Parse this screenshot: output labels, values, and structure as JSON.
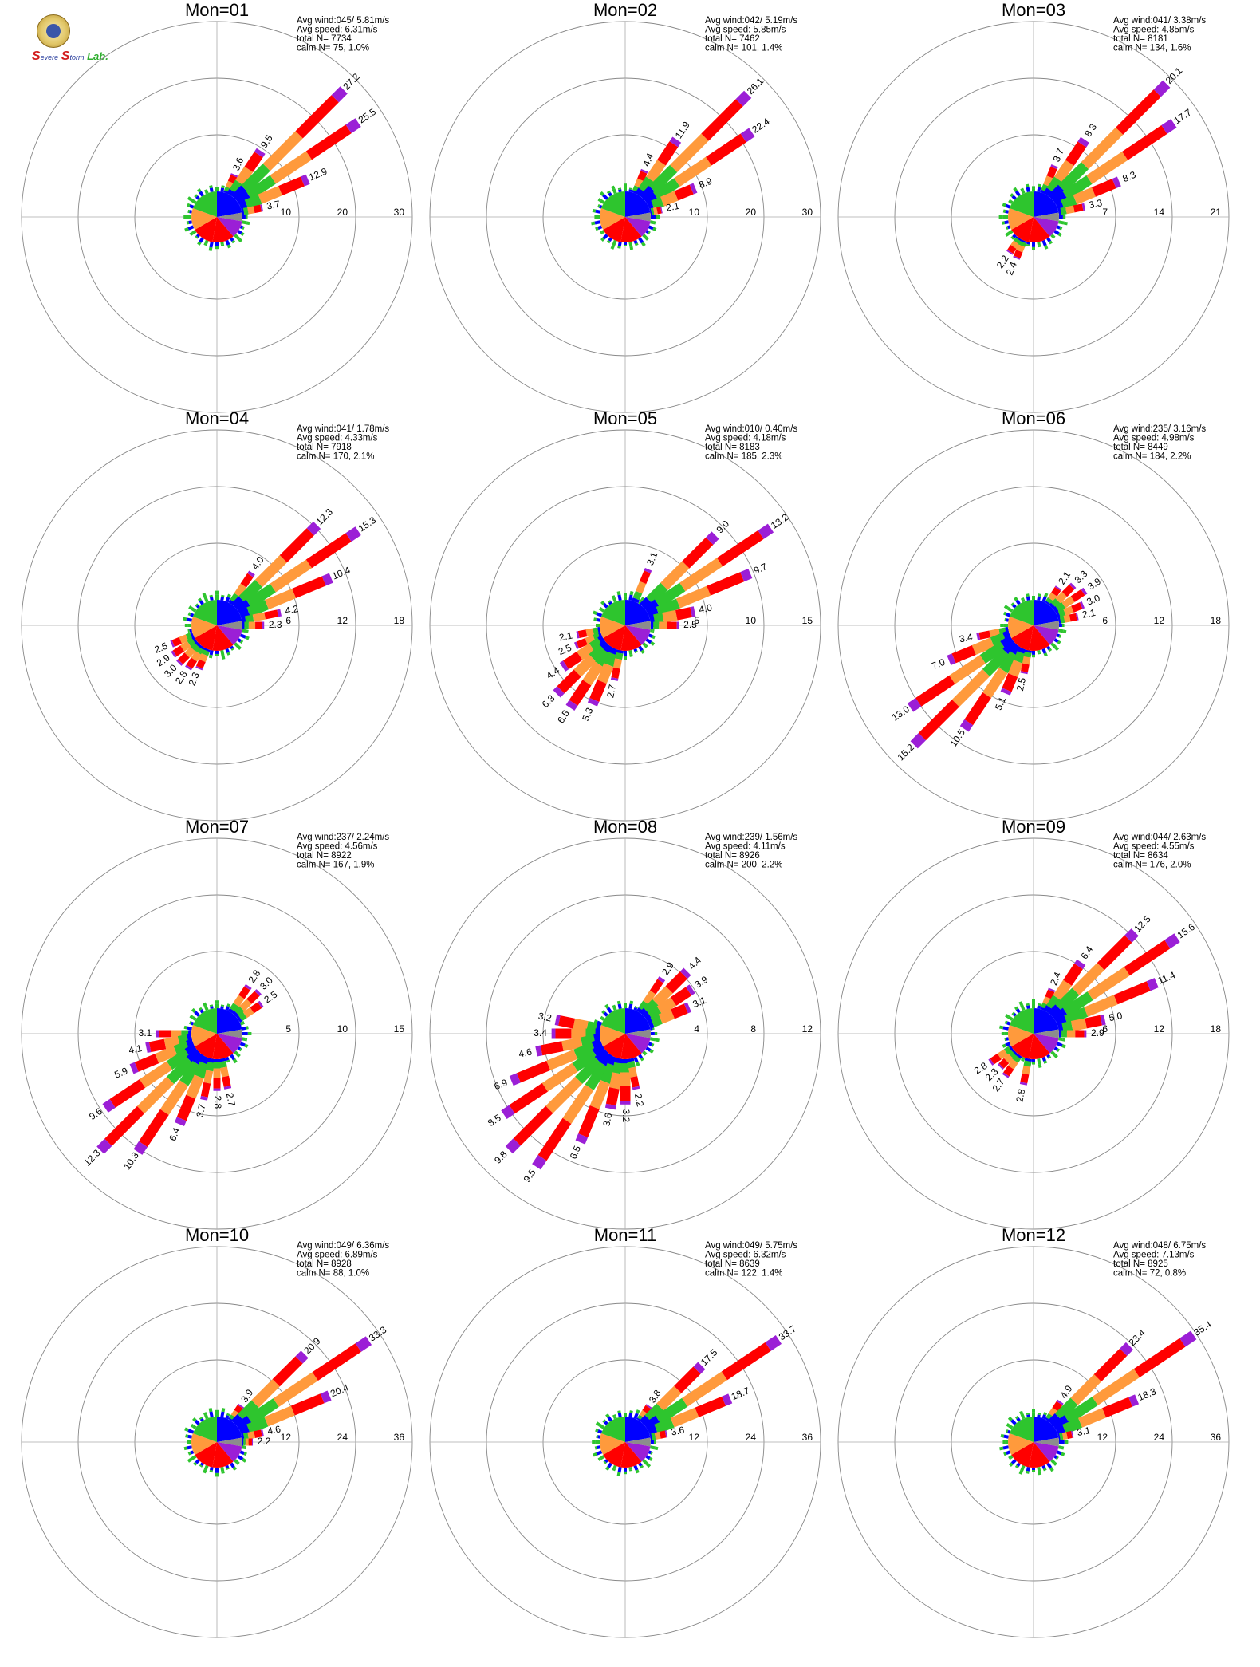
{
  "logo": {
    "icon": "seal-icon",
    "letter": "S",
    "word1": "evere",
    "word2": "torm",
    "lab": "Lab."
  },
  "palette": {
    "blue": "#0000ff",
    "green": "#2ec52e",
    "orange": "#ff9a3c",
    "red": "#ff0000",
    "purple": "#9b1fd6",
    "grey": "#8c8c8c",
    "ring": "#888888",
    "axis": "#aaaaaa"
  },
  "chart_data": [
    {
      "type": "wind-rose",
      "title": "Mon=01",
      "avg_wind": "045/ 5.81m/s",
      "avg_speed": "6.31m/s",
      "total_n": "7734",
      "calm_n": "75,",
      "calm_pct": "1.0%",
      "rmax": 30,
      "rings": [
        10,
        20,
        30
      ],
      "petals": [
        {
          "dir": 22.5,
          "label": "3.6"
        },
        {
          "dir": 33.75,
          "label": "9.5"
        },
        {
          "dir": 45,
          "label": "27.2"
        },
        {
          "dir": 56.25,
          "label": "25.5"
        },
        {
          "dir": 67.5,
          "label": "12.9"
        },
        {
          "dir": 78.75,
          "label": "3.7"
        }
      ]
    },
    {
      "type": "wind-rose",
      "title": "Mon=02",
      "avg_wind": "042/ 5.19m/s",
      "avg_speed": "5.85m/s",
      "total_n": "7462",
      "calm_n": "101,",
      "calm_pct": "1.4%",
      "rmax": 30,
      "rings": [
        10,
        20,
        30
      ],
      "petals": [
        {
          "dir": 22.5,
          "label": "4.4"
        },
        {
          "dir": 33.75,
          "label": "11.9"
        },
        {
          "dir": 45,
          "label": "26.1"
        },
        {
          "dir": 56.25,
          "label": "22.4"
        },
        {
          "dir": 67.5,
          "label": "8.9"
        },
        {
          "dir": 78.75,
          "label": "2.1"
        }
      ]
    },
    {
      "type": "wind-rose",
      "title": "Mon=03",
      "avg_wind": "041/ 3.38m/s",
      "avg_speed": "4.85m/s",
      "total_n": "8181",
      "calm_n": "134,",
      "calm_pct": "1.6%",
      "rmax": 21,
      "rings": [
        7,
        14,
        21
      ],
      "petals": [
        {
          "dir": 22.5,
          "label": "3.7"
        },
        {
          "dir": 33.75,
          "label": "8.3"
        },
        {
          "dir": 45,
          "label": "20.1"
        },
        {
          "dir": 56.25,
          "label": "17.7"
        },
        {
          "dir": 67.5,
          "label": "8.3"
        },
        {
          "dir": 78.75,
          "label": "3.3"
        },
        {
          "dir": 213.75,
          "label": "2.2"
        },
        {
          "dir": 202.5,
          "label": "2.4"
        }
      ]
    },
    {
      "type": "wind-rose",
      "title": "Mon=04",
      "avg_wind": "041/ 1.78m/s",
      "avg_speed": "4.33m/s",
      "total_n": "7918",
      "calm_n": "170,",
      "calm_pct": "2.1%",
      "rmax": 18,
      "rings": [
        6,
        12,
        18
      ],
      "petals": [
        {
          "dir": 33.75,
          "label": "4.0"
        },
        {
          "dir": 45,
          "label": "12.3"
        },
        {
          "dir": 56.25,
          "label": "15.3"
        },
        {
          "dir": 67.5,
          "label": "10.4"
        },
        {
          "dir": 78.75,
          "label": "4.2"
        },
        {
          "dir": 90,
          "label": "2.3"
        },
        {
          "dir": 247.5,
          "label": "2.5"
        },
        {
          "dir": 236.25,
          "label": "2.9"
        },
        {
          "dir": 225,
          "label": "3.0"
        },
        {
          "dir": 213.75,
          "label": "2.8"
        },
        {
          "dir": 202.5,
          "label": "2.3"
        }
      ]
    },
    {
      "type": "wind-rose",
      "title": "Mon=05",
      "avg_wind": "010/ 0.40m/s",
      "avg_speed": "4.18m/s",
      "total_n": "8183",
      "calm_n": "185,",
      "calm_pct": "2.3%",
      "rmax": 15,
      "rings": [
        5,
        10,
        15
      ],
      "petals": [
        {
          "dir": 22.5,
          "label": "3.1"
        },
        {
          "dir": 45,
          "label": "9.0"
        },
        {
          "dir": 56.25,
          "label": "13.2"
        },
        {
          "dir": 67.5,
          "label": "9.7"
        },
        {
          "dir": 78.75,
          "label": "4.0"
        },
        {
          "dir": 90,
          "label": "2.5"
        },
        {
          "dir": 258.75,
          "label": "2.1"
        },
        {
          "dir": 247.5,
          "label": "2.5"
        },
        {
          "dir": 236.25,
          "label": "4.4"
        },
        {
          "dir": 225,
          "label": "6.3"
        },
        {
          "dir": 213.75,
          "label": "6.5"
        },
        {
          "dir": 202.5,
          "label": "5.3"
        },
        {
          "dir": 191.25,
          "label": "2.7"
        }
      ]
    },
    {
      "type": "wind-rose",
      "title": "Mon=06",
      "avg_wind": "235/ 3.16m/s",
      "avg_speed": "4.98m/s",
      "total_n": "8449",
      "calm_n": "184,",
      "calm_pct": "2.2%",
      "rmax": 18,
      "rings": [
        6,
        12,
        18
      ],
      "petals": [
        {
          "dir": 33.75,
          "label": "2.1"
        },
        {
          "dir": 45,
          "label": "3.3"
        },
        {
          "dir": 56.25,
          "label": "3.9"
        },
        {
          "dir": 67.5,
          "label": "3.0"
        },
        {
          "dir": 78.75,
          "label": "2.1"
        },
        {
          "dir": 258.75,
          "label": "3.4"
        },
        {
          "dir": 247.5,
          "label": "7.0"
        },
        {
          "dir": 236.25,
          "label": "13.0"
        },
        {
          "dir": 225,
          "label": "15.2"
        },
        {
          "dir": 213.75,
          "label": "10.5"
        },
        {
          "dir": 202.5,
          "label": "5.1"
        },
        {
          "dir": 191.25,
          "label": "2.5"
        }
      ]
    },
    {
      "type": "wind-rose",
      "title": "Mon=07",
      "avg_wind": "237/ 2.24m/s",
      "avg_speed": "4.56m/s",
      "total_n": "8922",
      "calm_n": "167,",
      "calm_pct": "1.9%",
      "rmax": 15,
      "rings": [
        5,
        10,
        15
      ],
      "petals": [
        {
          "dir": 33.75,
          "label": "2.8"
        },
        {
          "dir": 45,
          "label": "3.0"
        },
        {
          "dir": 56.25,
          "label": "2.5"
        },
        {
          "dir": 270,
          "label": "3.1"
        },
        {
          "dir": 258.75,
          "label": "4.1"
        },
        {
          "dir": 247.5,
          "label": "5.9"
        },
        {
          "dir": 236.25,
          "label": "9.6"
        },
        {
          "dir": 225,
          "label": "12.3"
        },
        {
          "dir": 213.75,
          "label": "10.3"
        },
        {
          "dir": 202.5,
          "label": "6.4"
        },
        {
          "dir": 191.25,
          "label": "3.7"
        },
        {
          "dir": 180,
          "label": "2.8"
        },
        {
          "dir": 168.75,
          "label": "2.7"
        }
      ]
    },
    {
      "type": "wind-rose",
      "title": "Mon=08",
      "avg_wind": "239/ 1.56m/s",
      "avg_speed": "4.11m/s",
      "total_n": "8926",
      "calm_n": "200,",
      "calm_pct": "2.2%",
      "rmax": 12,
      "rings": [
        4,
        8,
        12
      ],
      "petals": [
        {
          "dir": 33.75,
          "label": "2.9"
        },
        {
          "dir": 45,
          "label": "4.4"
        },
        {
          "dir": 56.25,
          "label": "3.9"
        },
        {
          "dir": 67.5,
          "label": "3.1"
        },
        {
          "dir": 281.25,
          "label": "3.2"
        },
        {
          "dir": 270,
          "label": "3.4"
        },
        {
          "dir": 258.75,
          "label": "4.6"
        },
        {
          "dir": 247.5,
          "label": "6.9"
        },
        {
          "dir": 236.25,
          "label": "8.5"
        },
        {
          "dir": 225,
          "label": "9.8"
        },
        {
          "dir": 213.75,
          "label": "9.5"
        },
        {
          "dir": 202.5,
          "label": "6.5"
        },
        {
          "dir": 191.25,
          "label": "3.6"
        },
        {
          "dir": 180,
          "label": "3.2"
        },
        {
          "dir": 168.75,
          "label": "2.2"
        }
      ]
    },
    {
      "type": "wind-rose",
      "title": "Mon=09",
      "avg_wind": "044/ 2.63m/s",
      "avg_speed": "4.55m/s",
      "total_n": "8634",
      "calm_n": "176,",
      "calm_pct": "2.0%",
      "rmax": 18,
      "rings": [
        6,
        12,
        18
      ],
      "petals": [
        {
          "dir": 22.5,
          "label": "2.4"
        },
        {
          "dir": 33.75,
          "label": "6.4"
        },
        {
          "dir": 45,
          "label": "12.5"
        },
        {
          "dir": 56.25,
          "label": "15.6"
        },
        {
          "dir": 67.5,
          "label": "11.4"
        },
        {
          "dir": 78.75,
          "label": "5.0"
        },
        {
          "dir": 90,
          "label": "2.9"
        },
        {
          "dir": 236.25,
          "label": "2.8"
        },
        {
          "dir": 225,
          "label": "2.3"
        },
        {
          "dir": 213.75,
          "label": "2.7"
        },
        {
          "dir": 191.25,
          "label": "2.8"
        }
      ]
    },
    {
      "type": "wind-rose",
      "title": "Mon=10",
      "avg_wind": "049/ 6.36m/s",
      "avg_speed": "6.89m/s",
      "total_n": "8928",
      "calm_n": "88,",
      "calm_pct": "1.0%",
      "rmax": 36,
      "rings": [
        12,
        24,
        36
      ],
      "petals": [
        {
          "dir": 33.75,
          "label": "3.9"
        },
        {
          "dir": 45,
          "label": "20.9"
        },
        {
          "dir": 56.25,
          "label": "33.3"
        },
        {
          "dir": 67.5,
          "label": "20.4"
        },
        {
          "dir": 78.75,
          "label": "4.6"
        },
        {
          "dir": 90,
          "label": "2.2"
        }
      ]
    },
    {
      "type": "wind-rose",
      "title": "Mon=11",
      "avg_wind": "049/ 5.75m/s",
      "avg_speed": "6.32m/s",
      "total_n": "8639",
      "calm_n": "122,",
      "calm_pct": "1.4%",
      "rmax": 36,
      "rings": [
        12,
        24,
        36
      ],
      "petals": [
        {
          "dir": 33.75,
          "label": "3.8"
        },
        {
          "dir": 45,
          "label": "17.5"
        },
        {
          "dir": 56.25,
          "label": "33.7"
        },
        {
          "dir": 67.5,
          "label": "18.7"
        },
        {
          "dir": 78.75,
          "label": "3.6"
        }
      ]
    },
    {
      "type": "wind-rose",
      "title": "Mon=12",
      "avg_wind": "048/ 6.75m/s",
      "avg_speed": "7.13m/s",
      "total_n": "8925",
      "calm_n": "72,",
      "calm_pct": "0.8%",
      "rmax": 36,
      "rings": [
        12,
        24,
        36
      ],
      "petals": [
        {
          "dir": 33.75,
          "label": "4.9"
        },
        {
          "dir": 45,
          "label": "23.4"
        },
        {
          "dir": 56.25,
          "label": "35.4"
        },
        {
          "dir": 67.5,
          "label": "18.3"
        },
        {
          "dir": 78.75,
          "label": "3.1"
        }
      ]
    }
  ]
}
